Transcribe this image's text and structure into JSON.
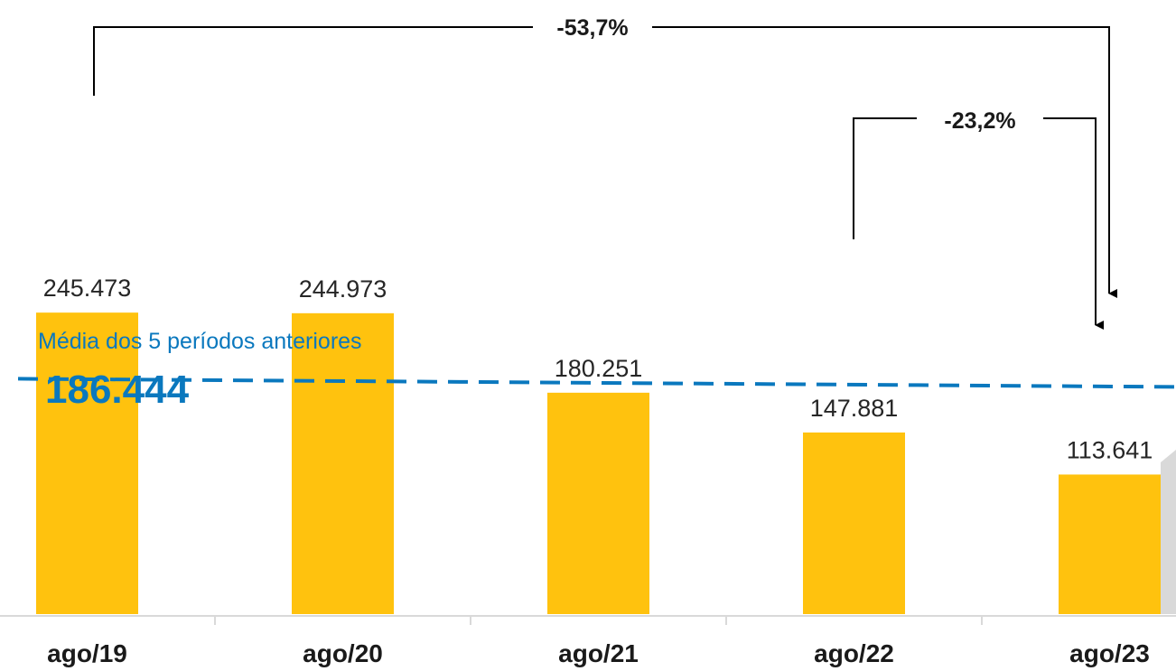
{
  "chart_data": {
    "type": "bar",
    "categories": [
      "ago/19",
      "ago/20",
      "ago/21",
      "ago/22",
      "ago/23"
    ],
    "values": [
      245473,
      244973,
      180251,
      147881,
      113641
    ],
    "value_labels": [
      "245.473",
      "244.973",
      "180.251",
      "147.881",
      "113.641"
    ],
    "title": "",
    "xlabel": "",
    "ylabel": "",
    "ylim": [
      0,
      500000
    ],
    "grid": false,
    "reference_line": {
      "label": "Média dos 5 períodos anteriores",
      "value": 186444,
      "value_label": "186.444"
    },
    "annotations": [
      {
        "label": "-53,7%",
        "from": "ago/19",
        "to": "ago/23"
      },
      {
        "label": "-23,2%",
        "from": "ago/22",
        "to": "ago/23"
      }
    ]
  },
  "colors": {
    "bar": "#FFC20E",
    "reference_line": "#0A78BE",
    "axis": "#D9D9D9",
    "annotation": "#000000",
    "text": "#262626"
  }
}
